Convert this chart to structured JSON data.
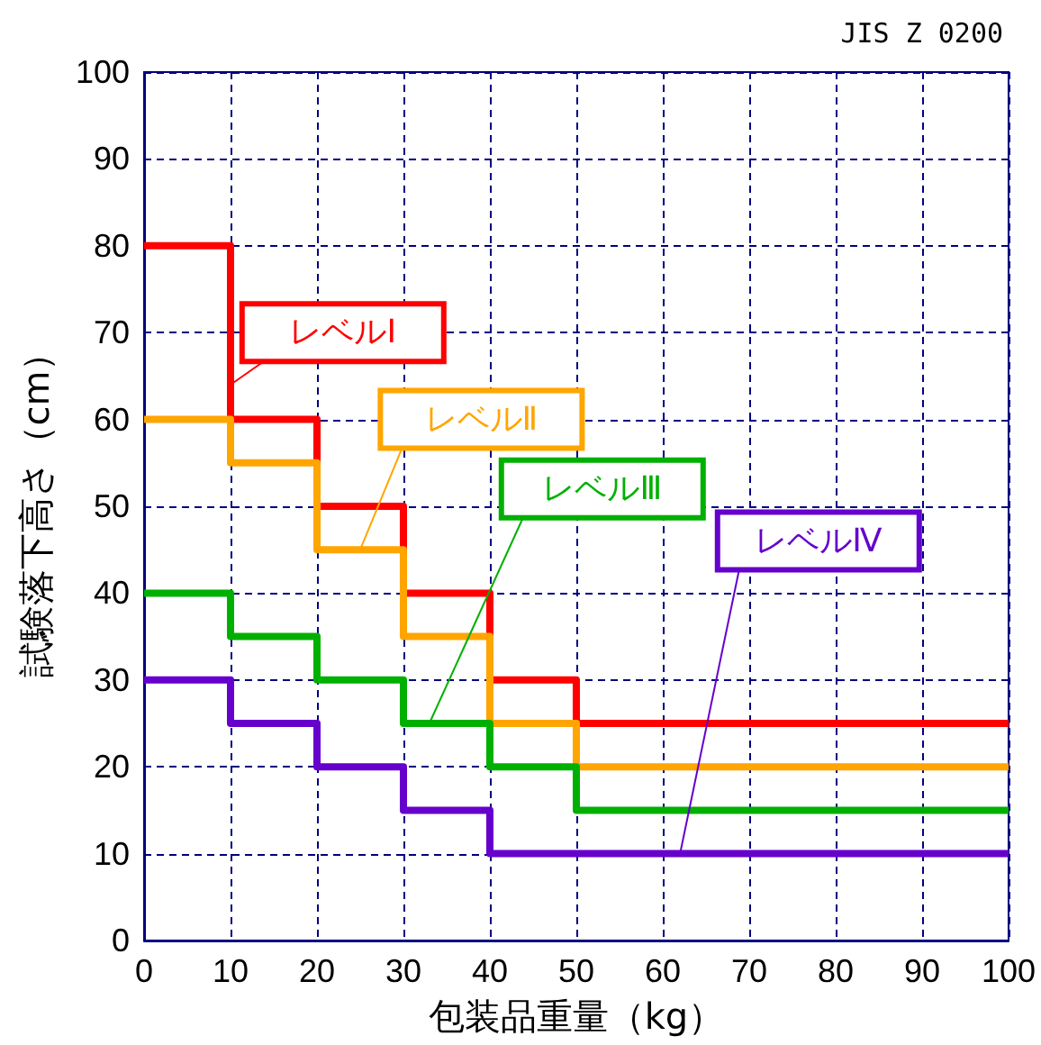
{
  "chart_data": {
    "type": "step",
    "title": "JIS Z 0200",
    "xlabel": "包装品重量（kg）",
    "ylabel": "試験落下高さ（cm）",
    "x": [
      0,
      10,
      20,
      30,
      40,
      50,
      100
    ],
    "series": [
      {
        "name": "レベルⅠ",
        "color": "#ff0000",
        "values": [
          80,
          60,
          50,
          40,
          30,
          25,
          25
        ]
      },
      {
        "name": "レベルⅡ",
        "color": "#ffa500",
        "values": [
          60,
          55,
          45,
          35,
          25,
          20,
          20
        ]
      },
      {
        "name": "レベルⅢ",
        "color": "#00b000",
        "values": [
          40,
          35,
          30,
          25,
          20,
          15,
          15
        ]
      },
      {
        "name": "レベルⅣ",
        "color": "#6600cc",
        "values": [
          30,
          25,
          20,
          15,
          10,
          10,
          10
        ]
      }
    ],
    "xlim": [
      0,
      100
    ],
    "xticks": [
      0,
      10,
      20,
      30,
      40,
      50,
      60,
      70,
      80,
      90,
      100
    ],
    "ylim": [
      0,
      100
    ],
    "yticks": [
      0,
      10,
      20,
      30,
      40,
      50,
      60,
      70,
      80,
      90,
      100
    ],
    "grid": true,
    "legend": false,
    "marker": "none",
    "line_style": "solid"
  }
}
